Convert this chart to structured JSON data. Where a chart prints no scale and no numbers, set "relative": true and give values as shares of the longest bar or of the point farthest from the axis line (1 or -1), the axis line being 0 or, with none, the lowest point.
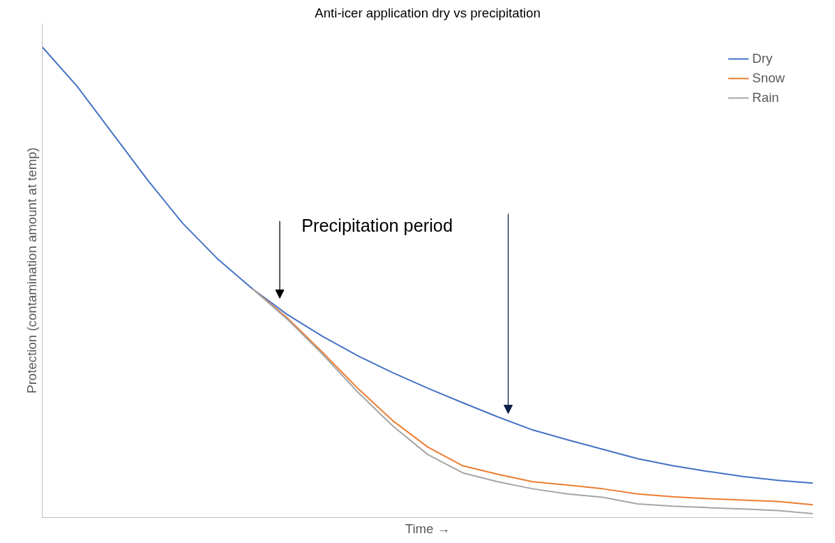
{
  "chart_data": {
    "type": "line",
    "title": "Anti-icer application dry vs precipitation",
    "xlabel": "Time →",
    "ylabel": "Protection (contamination amount at temp)",
    "relative": true,
    "legend": "top right",
    "annotations": [
      "Precipitation period"
    ],
    "categories": [
      null,
      null,
      null,
      null,
      null,
      null,
      null,
      null,
      null,
      null,
      null,
      null,
      null,
      null,
      null,
      null,
      null,
      null,
      null,
      null,
      null,
      null,
      null
    ],
    "series": [
      {
        "name": "Dry",
        "color": "#4472c4",
        "values": [
          1.0,
          0.916,
          0.817,
          0.718,
          0.626,
          0.55,
          0.486,
          0.431,
          0.385,
          0.344,
          0.308,
          0.275,
          0.244,
          0.214,
          0.186,
          0.165,
          0.145,
          0.125,
          0.11,
          0.098,
          0.087,
          0.079,
          0.073
        ]
      },
      {
        "name": "Snow",
        "color": "#ed7d31",
        "values": [
          null,
          null,
          null,
          null,
          null,
          null,
          0.486,
          0.424,
          0.351,
          0.275,
          0.206,
          0.15,
          0.11,
          0.092,
          0.076,
          0.069,
          0.061,
          0.05,
          0.044,
          0.04,
          0.037,
          0.034,
          0.027
        ]
      },
      {
        "name": "Rain",
        "color": "#a5a5a5",
        "values": [
          null,
          null,
          null,
          null,
          null,
          null,
          0.486,
          0.421,
          0.347,
          0.267,
          0.195,
          0.134,
          0.095,
          0.076,
          0.061,
          0.05,
          0.043,
          0.029,
          0.024,
          0.021,
          0.018,
          0.015,
          0.008
        ]
      }
    ]
  }
}
